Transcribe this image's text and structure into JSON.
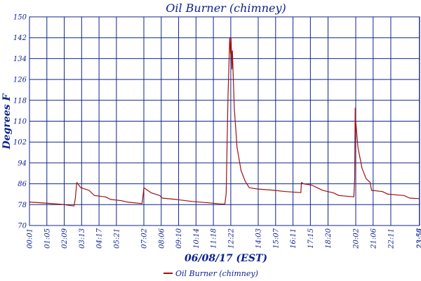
{
  "chart_data": {
    "type": "line",
    "title": "Oil Burner (chimney)",
    "xlabel": "06/08/17 (EST)",
    "ylabel": "Degrees F",
    "ylim": [
      70,
      150
    ],
    "yticks": [
      70,
      78,
      86,
      94,
      102,
      110,
      118,
      126,
      134,
      142,
      150
    ],
    "xlim_hours": [
      0.0167,
      23.95
    ],
    "xticks": [
      "00:01",
      "01:05",
      "02:09",
      "03:13",
      "04:17",
      "05:21",
      "07:02",
      "08:06",
      "09:10",
      "10:14",
      "11:18",
      "12:22",
      "14:03",
      "15:07",
      "16:11",
      "17:15",
      "18:20",
      "20:02",
      "21:06",
      "22:11",
      "23:56",
      "23:57"
    ],
    "grid": true,
    "legend_position": "bottom-left",
    "colors": {
      "series": "#a01010",
      "grid": "#11248a",
      "text": "#0b1f8f"
    },
    "series": [
      {
        "name": "Oil Burner (chimney)",
        "points": [
          [
            "00:01",
            79.0
          ],
          [
            "01:00",
            78.6
          ],
          [
            "02:00",
            78.1
          ],
          [
            "02:45",
            77.5
          ],
          [
            "02:50",
            80.5
          ],
          [
            "02:55",
            86.5
          ],
          [
            "03:10",
            84.5
          ],
          [
            "03:40",
            83.5
          ],
          [
            "04:00",
            81.5
          ],
          [
            "04:40",
            81.0
          ],
          [
            "05:00",
            80.0
          ],
          [
            "05:40",
            79.5
          ],
          [
            "06:00",
            79.0
          ],
          [
            "06:55",
            78.4
          ],
          [
            "06:58",
            80.5
          ],
          [
            "07:02",
            84.5
          ],
          [
            "07:30",
            82.5
          ],
          [
            "08:00",
            81.5
          ],
          [
            "08:10",
            80.5
          ],
          [
            "09:00",
            80.0
          ],
          [
            "10:00",
            79.2
          ],
          [
            "11:00",
            78.7
          ],
          [
            "11:40",
            78.3
          ],
          [
            "12:00",
            78.2
          ],
          [
            "12:05",
            82.0
          ],
          [
            "12:12",
            120.0
          ],
          [
            "12:18",
            142.0
          ],
          [
            "12:21",
            136.0
          ],
          [
            "12:23",
            142.0
          ],
          [
            "12:26",
            130.0
          ],
          [
            "12:28",
            137.0
          ],
          [
            "12:35",
            115.0
          ],
          [
            "12:45",
            100.0
          ],
          [
            "13:00",
            91.0
          ],
          [
            "13:15",
            87.0
          ],
          [
            "13:30",
            84.5
          ],
          [
            "14:00",
            84.0
          ],
          [
            "15:00",
            83.5
          ],
          [
            "15:45",
            83.0
          ],
          [
            "16:40",
            82.6
          ],
          [
            "16:42",
            86.5
          ],
          [
            "16:50",
            86.0
          ],
          [
            "17:20",
            85.5
          ],
          [
            "17:40",
            84.5
          ],
          [
            "18:00",
            83.5
          ],
          [
            "18:40",
            82.5
          ],
          [
            "19:00",
            81.5
          ],
          [
            "19:55",
            81.0
          ],
          [
            "19:58",
            88.0
          ],
          [
            "20:00",
            115.0
          ],
          [
            "20:01",
            105.0
          ],
          [
            "20:02",
            110.0
          ],
          [
            "20:10",
            100.0
          ],
          [
            "20:25",
            92.0
          ],
          [
            "20:40",
            88.0
          ],
          [
            "20:55",
            86.5
          ],
          [
            "21:00",
            83.5
          ],
          [
            "21:40",
            83.0
          ],
          [
            "22:00",
            82.0
          ],
          [
            "23:00",
            81.5
          ],
          [
            "23:20",
            80.5
          ],
          [
            "23:57",
            80.3
          ]
        ]
      }
    ]
  }
}
